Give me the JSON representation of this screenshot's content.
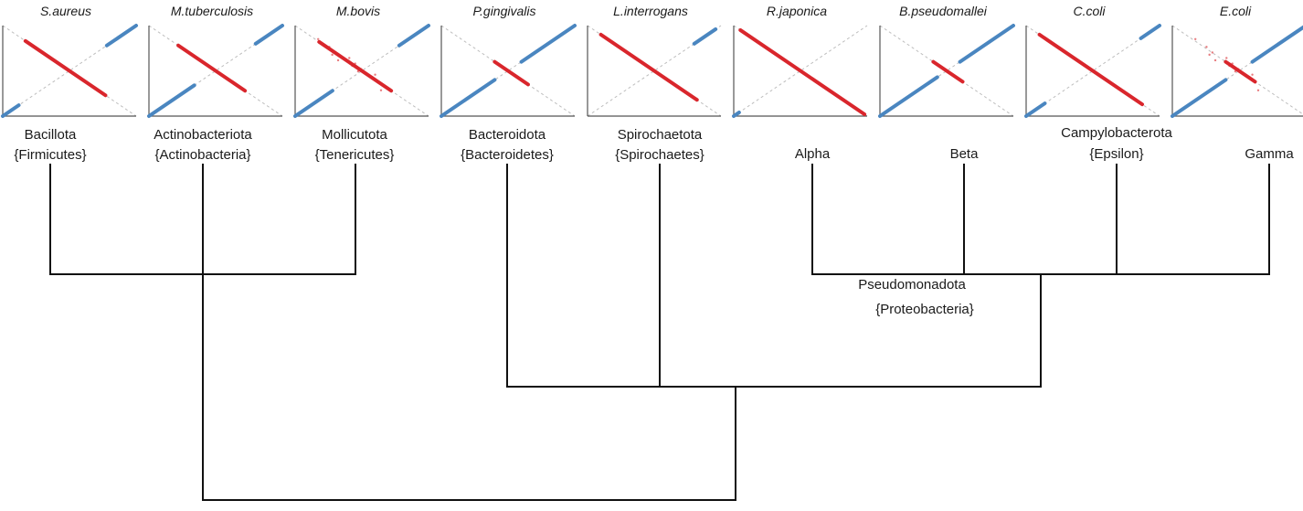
{
  "species": [
    "S.aureus",
    "M.tuberculosis",
    "M.bovis",
    "P.gingivalis",
    "L.interrogans",
    "R.japonica",
    "B.pseudomallei",
    "C.coli",
    "E.coli"
  ],
  "phyla": [
    {
      "name": "Bacillota",
      "old": "{Firmicutes}"
    },
    {
      "name": "Actinobacteriota",
      "old": "{Actinobacteria}"
    },
    {
      "name": "Mollicutota",
      "old": "{Tenericutes}"
    },
    {
      "name": "Bacteroidota",
      "old": "{Bacteroidetes}"
    },
    {
      "name": "Spirochaetota",
      "old": "{Spirochaetes}"
    }
  ],
  "proteo_classes": {
    "alpha": "Alpha",
    "beta": "Beta",
    "epsilon_phylum": "Campylobacterota",
    "epsilon": "{Epsilon}",
    "gamma": "Gamma"
  },
  "proteobacteria": {
    "name": "Pseudomonadota",
    "old": "{Proteobacteria}"
  },
  "colors": {
    "leading": "#4a86c0",
    "lagging": "#d9262c",
    "axis": "#555555",
    "diagonal": "#bdbdbd",
    "tree": "#111111"
  }
}
